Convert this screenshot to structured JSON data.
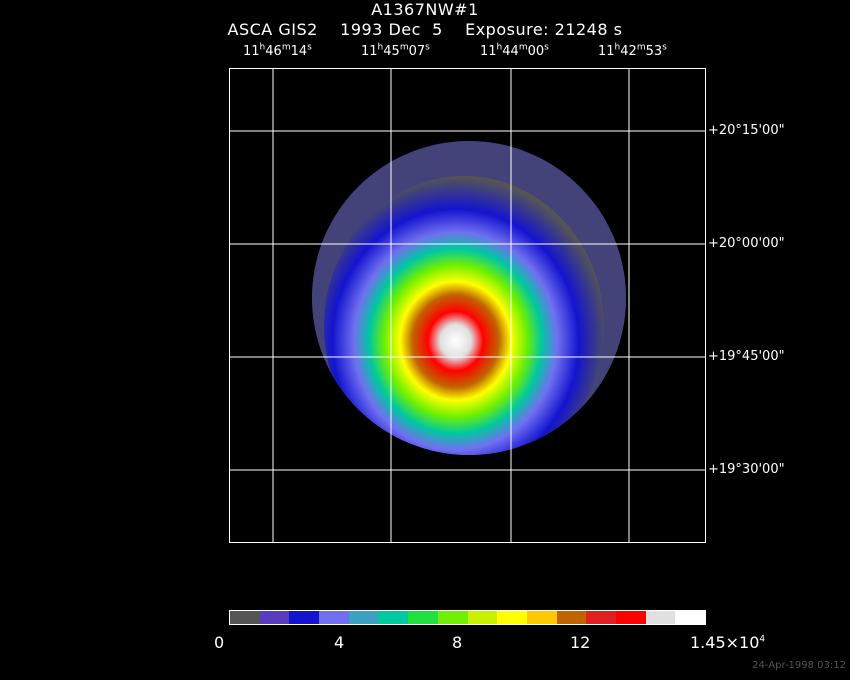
{
  "header": {
    "object": "A1367NW#1",
    "instrument_line": "ASCA GIS2    1993 Dec  5    Exposure: 21248 s"
  },
  "ra_labels": [
    {
      "h": "11",
      "m": "46",
      "s": "14"
    },
    {
      "h": "11",
      "m": "45",
      "s": "07"
    },
    {
      "h": "11",
      "m": "44",
      "s": "00"
    },
    {
      "h": "11",
      "m": "42",
      "s": "53"
    }
  ],
  "dec_labels": [
    "+20°15'00\"",
    "+20°00'00\"",
    "+19°45'00\"",
    "+19°30'00\""
  ],
  "colorbar": {
    "colors": [
      "#555555",
      "#5a3cc0",
      "#1414d0",
      "#7070f0",
      "#3ca0c0",
      "#00c8a0",
      "#20e040",
      "#70f000",
      "#c8f000",
      "#ffff00",
      "#ffc800",
      "#c06400",
      "#e02020",
      "#ff0000",
      "#e0e0e0",
      "#ffffff"
    ],
    "labels": [
      "0",
      "4",
      "8",
      "12"
    ],
    "max_label": "1.45×10",
    "max_exp": "4"
  },
  "image_colors": {
    "background": "#000000",
    "grid": "#ffffff"
  },
  "stamp": "24-Apr-1998 03:12"
}
